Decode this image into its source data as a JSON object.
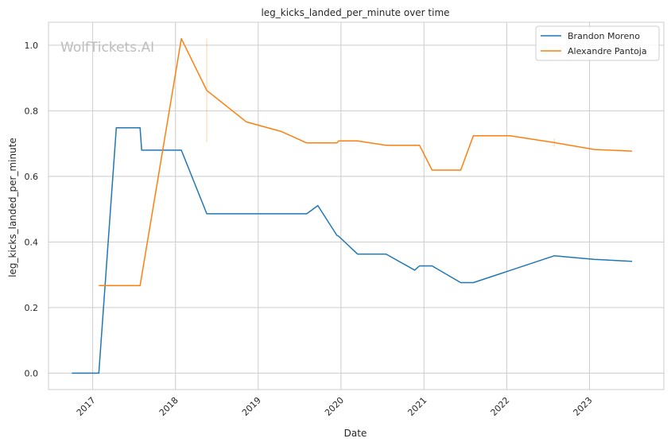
{
  "watermark": "WolfTickets.AI",
  "chart_data": {
    "type": "line",
    "title": "leg_kicks_landed_per_minute over time",
    "xlabel": "Date",
    "ylabel": "leg_kicks_landed_per_minute",
    "x_ticks": [
      "2017",
      "2018",
      "2019",
      "2020",
      "2021",
      "2022",
      "2023"
    ],
    "y_ticks": [
      "0.0",
      "0.2",
      "0.4",
      "0.6",
      "0.8",
      "1.0"
    ],
    "xlim": [
      "2016-06-20",
      "2023-11-25"
    ],
    "ylim": [
      -0.05,
      1.07
    ],
    "grid": true,
    "legend_position": "top-right",
    "series": [
      {
        "name": "Brandon Moreno",
        "color": "#1f77b4",
        "points": [
          [
            "2016-10-01",
            0.0
          ],
          [
            "2017-01-28",
            0.0
          ],
          [
            "2017-04-15",
            0.748
          ],
          [
            "2017-07-29",
            0.748
          ],
          [
            "2017-08-05",
            0.68
          ],
          [
            "2018-01-27",
            0.68
          ],
          [
            "2018-05-19",
            0.486
          ],
          [
            "2019-08-03",
            0.486
          ],
          [
            "2019-09-21",
            0.511
          ],
          [
            "2019-12-14",
            0.42
          ],
          [
            "2019-12-21",
            0.418
          ],
          [
            "2020-03-14",
            0.363
          ],
          [
            "2020-07-18",
            0.363
          ],
          [
            "2020-11-21",
            0.314
          ],
          [
            "2020-12-12",
            0.327
          ],
          [
            "2021-02-06",
            0.327
          ],
          [
            "2021-06-12",
            0.276
          ],
          [
            "2021-08-07",
            0.276
          ],
          [
            "2022-07-30",
            0.358
          ],
          [
            "2023-01-21",
            0.347
          ],
          [
            "2023-07-08",
            0.341
          ]
        ]
      },
      {
        "name": "Alexandre Pantoja",
        "color": "#ff7f0e",
        "points": [
          [
            "2017-01-28",
            0.267
          ],
          [
            "2017-07-29",
            0.267
          ],
          [
            "2018-01-27",
            1.02
          ],
          [
            "2018-05-19",
            0.862
          ],
          [
            "2018-11-10",
            0.766
          ],
          [
            "2019-04-13",
            0.737
          ],
          [
            "2019-08-03",
            0.702
          ],
          [
            "2019-12-14",
            0.702
          ],
          [
            "2019-12-21",
            0.708
          ],
          [
            "2020-03-14",
            0.708
          ],
          [
            "2020-07-18",
            0.695
          ],
          [
            "2020-11-21",
            0.695
          ],
          [
            "2020-12-12",
            0.695
          ],
          [
            "2021-02-06",
            0.619
          ],
          [
            "2021-06-12",
            0.619
          ],
          [
            "2021-08-07",
            0.724
          ],
          [
            "2022-01-15",
            0.724
          ],
          [
            "2022-07-30",
            0.703
          ],
          [
            "2023-01-21",
            0.682
          ],
          [
            "2023-07-08",
            0.677
          ]
        ],
        "error_bars": [
          {
            "x": "2018-05-19",
            "low": 0.705,
            "high": 1.02
          },
          {
            "x": "2022-07-30",
            "low": 0.69,
            "high": 0.716
          }
        ]
      }
    ]
  }
}
